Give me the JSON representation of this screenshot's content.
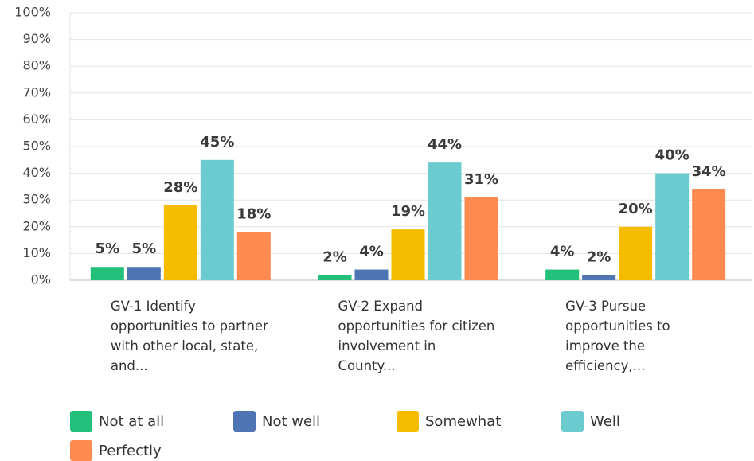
{
  "chart_data": {
    "type": "bar",
    "categories": [
      "GV-1 Identify opportunities to partner with other local, state, and...",
      "GV-2 Expand opportunities for citizen involvement in County...",
      "GV-3 Pursue opportunities to improve the efficiency,..."
    ],
    "series": [
      {
        "name": "Not at all",
        "color": "#22c07a",
        "values": [
          5,
          2,
          4
        ],
        "value_labels": [
          "5%",
          "2%",
          "4%"
        ]
      },
      {
        "name": "Not well",
        "color": "#4f74b4",
        "values": [
          5,
          4,
          2
        ],
        "value_labels": [
          "5%",
          "4%",
          "2%"
        ]
      },
      {
        "name": "Somewhat",
        "color": "#f6bd00",
        "values": [
          28,
          19,
          20
        ],
        "value_labels": [
          "28%",
          "19%",
          "20%"
        ]
      },
      {
        "name": "Well",
        "color": "#6ccbcf",
        "values": [
          45,
          44,
          40
        ],
        "value_labels": [
          "45%",
          "44%",
          "40%"
        ]
      },
      {
        "name": "Perfectly",
        "color": "#ff8b50",
        "values": [
          18,
          31,
          34
        ],
        "value_labels": [
          "18%",
          "31%",
          "34%"
        ]
      }
    ],
    "ylim": [
      0,
      100
    ],
    "yticks": [
      {
        "value": 0,
        "label": "0%"
      },
      {
        "value": 10,
        "label": "10%"
      },
      {
        "value": 20,
        "label": "20%"
      },
      {
        "value": 30,
        "label": "30%"
      },
      {
        "value": 40,
        "label": "40%"
      },
      {
        "value": 50,
        "label": "50%"
      },
      {
        "value": 60,
        "label": "60%"
      },
      {
        "value": 70,
        "label": "70%"
      },
      {
        "value": 80,
        "label": "80%"
      },
      {
        "value": 90,
        "label": "90%"
      },
      {
        "value": 100,
        "label": "100%"
      }
    ],
    "grid": true
  }
}
